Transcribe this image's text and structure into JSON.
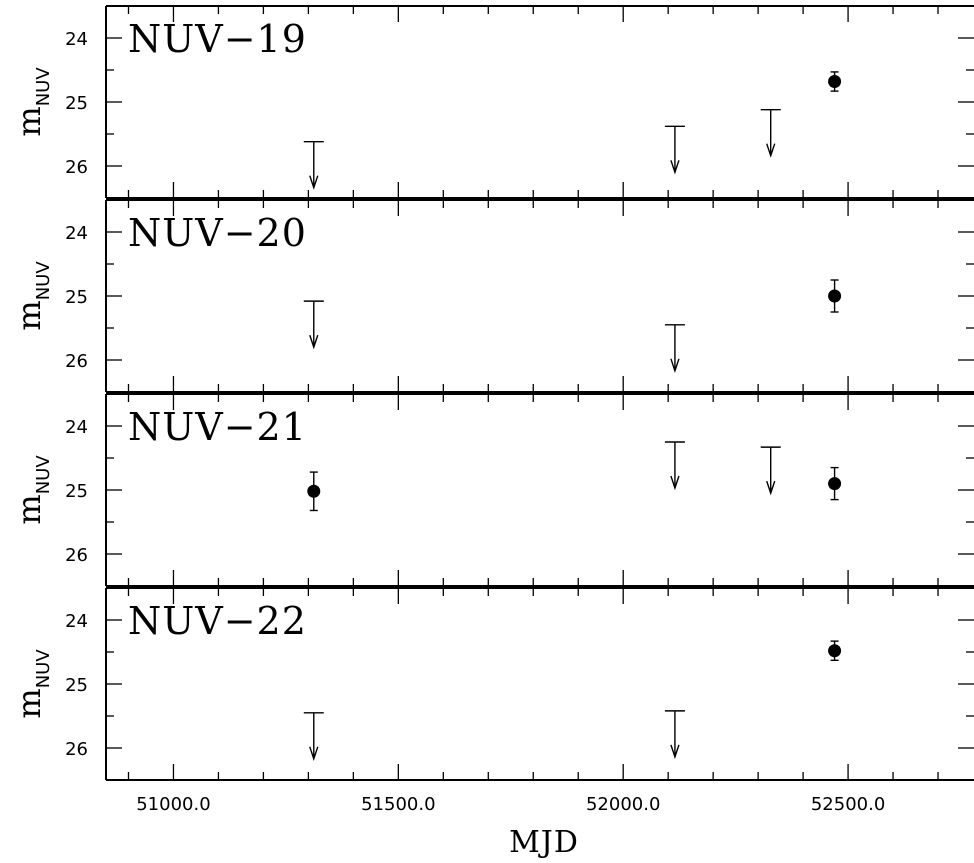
{
  "chart_data": {
    "type": "scatter",
    "xlabel": "MJD",
    "ylabel_main": "m",
    "ylabel_sub": "NUV",
    "xlim": [
      50850,
      52780
    ],
    "x_ticks": [
      51000.0,
      51500.0,
      52000.0,
      52500.0
    ],
    "x_tick_labels": [
      "51000.0",
      "51500.0",
      "52000.0",
      "52500.0"
    ],
    "ylim": [
      26.5,
      23.5
    ],
    "y_ticks": [
      24,
      25,
      26
    ],
    "y_tick_labels": [
      "24",
      "25",
      "26"
    ],
    "panels": [
      {
        "label": "NUV−19",
        "detections": [
          {
            "x": 52470,
            "y": 24.68,
            "err": 0.15
          }
        ],
        "upper_limits": [
          {
            "x": 51312,
            "y": 25.62
          },
          {
            "x": 52115,
            "y": 25.38
          },
          {
            "x": 52328,
            "y": 25.12
          }
        ]
      },
      {
        "label": "NUV−20",
        "detections": [
          {
            "x": 52470,
            "y": 25.0,
            "err": 0.25
          }
        ],
        "upper_limits": [
          {
            "x": 51312,
            "y": 25.08
          },
          {
            "x": 52115,
            "y": 25.45
          }
        ]
      },
      {
        "label": "NUV−21",
        "detections": [
          {
            "x": 51312,
            "y": 25.02,
            "err": 0.3
          },
          {
            "x": 52470,
            "y": 24.9,
            "err": 0.25
          }
        ],
        "upper_limits": [
          {
            "x": 52115,
            "y": 24.25
          },
          {
            "x": 52328,
            "y": 24.33
          }
        ]
      },
      {
        "label": "NUV−22",
        "detections": [
          {
            "x": 52470,
            "y": 24.48,
            "err": 0.15
          }
        ],
        "upper_limits": [
          {
            "x": 51312,
            "y": 25.45
          },
          {
            "x": 52115,
            "y": 25.42
          }
        ]
      }
    ]
  }
}
